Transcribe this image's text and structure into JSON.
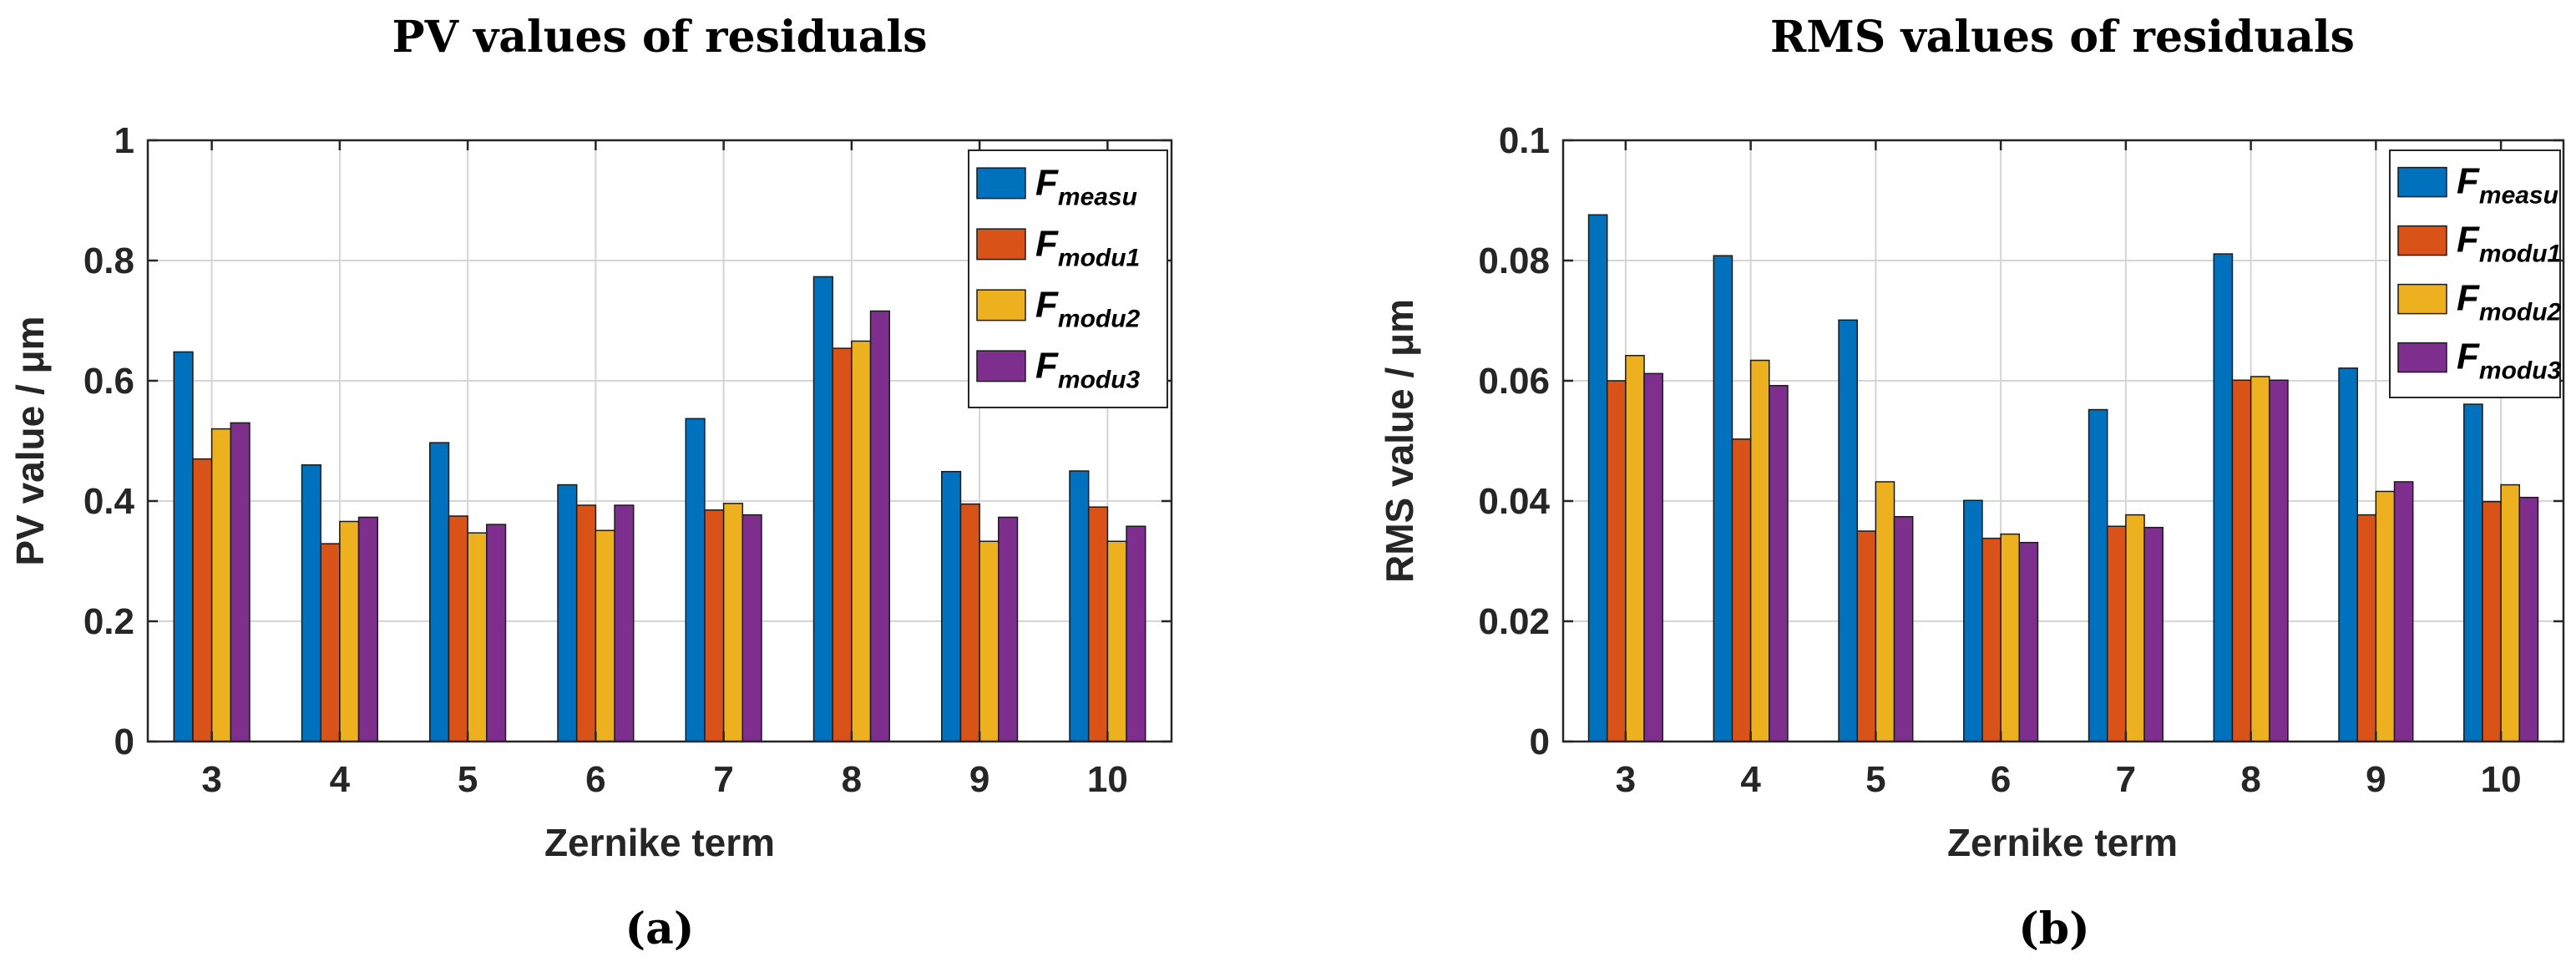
{
  "chart_data": [
    {
      "type": "bar",
      "title": "PV values of residuals",
      "xlabel": "Zernike term",
      "ylabel": "PV value / μm",
      "caption": "(a)",
      "categories": [
        "3",
        "4",
        "5",
        "6",
        "7",
        "8",
        "9",
        "10"
      ],
      "ylim": [
        0,
        1
      ],
      "yticks": [
        "0",
        "0.2",
        "0.4",
        "0.6",
        "0.8",
        "1"
      ],
      "grid": true,
      "legend_position": "top-right",
      "series": [
        {
          "name": "F",
          "sub": "measu",
          "color": "#0072BD",
          "values": [
            0.648,
            0.46,
            0.497,
            0.427,
            0.537,
            0.773,
            0.449,
            0.45
          ]
        },
        {
          "name": "F",
          "sub": "modu1",
          "color": "#D95319",
          "values": [
            0.47,
            0.329,
            0.375,
            0.393,
            0.385,
            0.654,
            0.395,
            0.39
          ]
        },
        {
          "name": "F",
          "sub": "modu2",
          "color": "#EDB120",
          "values": [
            0.52,
            0.366,
            0.347,
            0.351,
            0.396,
            0.666,
            0.333,
            0.333
          ]
        },
        {
          "name": "F",
          "sub": "modu3",
          "color": "#7E2F8E",
          "values": [
            0.53,
            0.373,
            0.361,
            0.393,
            0.377,
            0.716,
            0.373,
            0.358
          ]
        }
      ]
    },
    {
      "type": "bar",
      "title": "RMS values of residuals",
      "xlabel": "Zernike term",
      "ylabel": "RMS value / μm",
      "caption": "(b)",
      "categories": [
        "3",
        "4",
        "5",
        "6",
        "7",
        "8",
        "9",
        "10"
      ],
      "ylim": [
        0,
        0.1
      ],
      "yticks": [
        "0",
        "0.02",
        "0.04",
        "0.06",
        "0.08",
        "0.1"
      ],
      "grid": true,
      "legend_position": "top-right",
      "series": [
        {
          "name": "F",
          "sub": "measu",
          "color": "#0072BD",
          "values": [
            0.0876,
            0.0808,
            0.0701,
            0.0401,
            0.0552,
            0.0811,
            0.0621,
            0.0561
          ]
        },
        {
          "name": "F",
          "sub": "modu1",
          "color": "#D95319",
          "values": [
            0.06,
            0.0503,
            0.035,
            0.0338,
            0.0358,
            0.0601,
            0.0377,
            0.0399
          ]
        },
        {
          "name": "F",
          "sub": "modu2",
          "color": "#EDB120",
          "values": [
            0.0642,
            0.0634,
            0.0432,
            0.0345,
            0.0377,
            0.0607,
            0.0416,
            0.0427
          ]
        },
        {
          "name": "F",
          "sub": "modu3",
          "color": "#7E2F8E",
          "values": [
            0.0612,
            0.0592,
            0.0374,
            0.0331,
            0.0356,
            0.0601,
            0.0432,
            0.0406
          ]
        }
      ]
    }
  ]
}
